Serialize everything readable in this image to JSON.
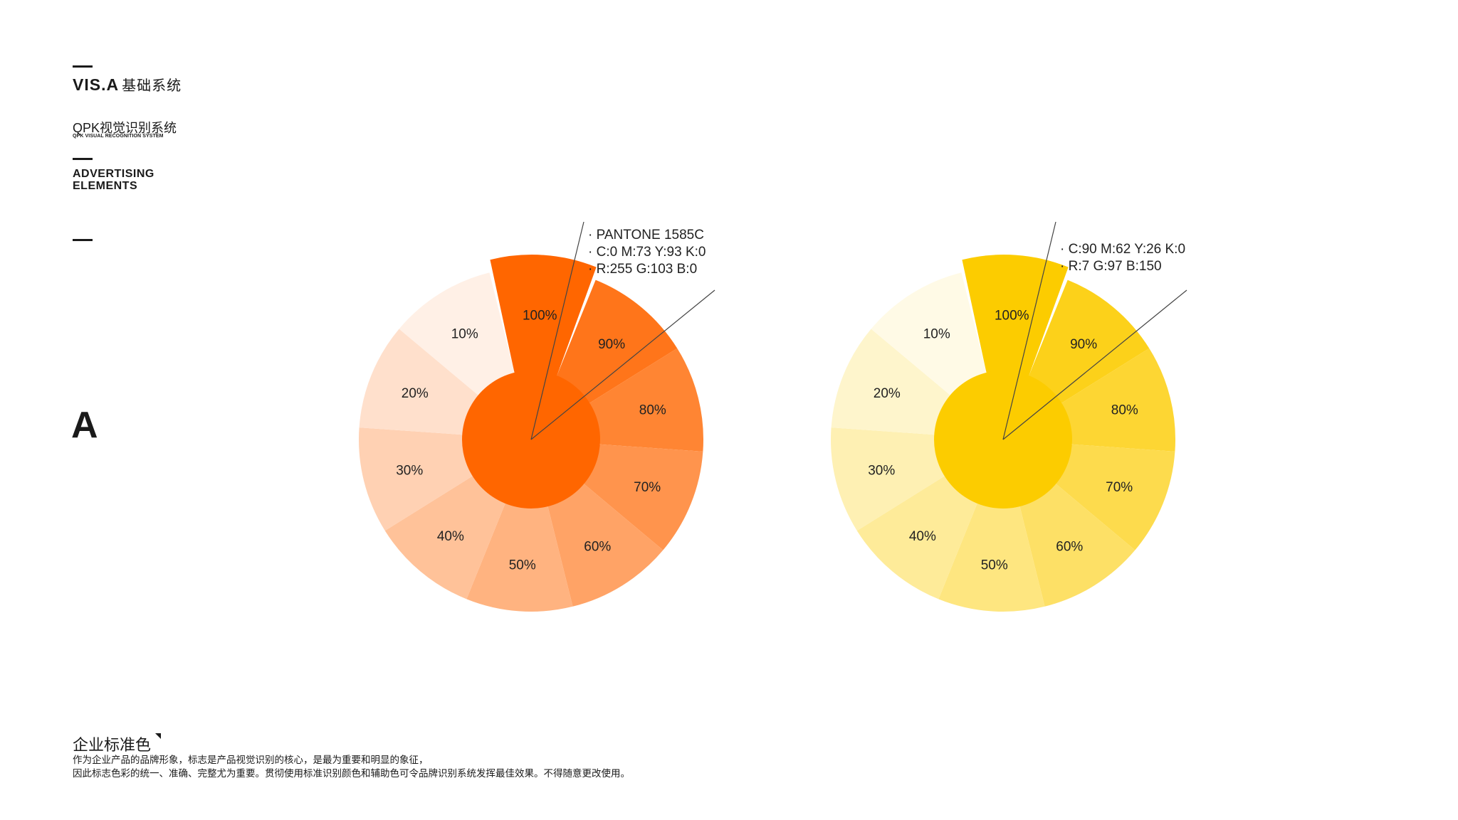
{
  "header": {
    "vis_code": "VIS.A",
    "vis_cn": "基础系统",
    "qpk_title": "QPK视觉识别系统",
    "qpk_subtitle": "QPK VISUAL RECOGNITION SYSTEM",
    "category_line1": "ADVERTISING",
    "category_line2": "ELEMENTS"
  },
  "section_letter": "A",
  "footer": {
    "title": "企业标准色",
    "desc_line1": "作为企业产品的品牌形象，标志是产品视觉识别的核心，是最为重要和明显的象征，",
    "desc_line2": "因此标志色彩的统一、准确、完整尤为重要。贯彻使用标准识别颜色和辅助色可令品牌识别系统发挥最佳效果。不得随意更改使用。"
  },
  "wheels": [
    {
      "name": "orange",
      "base_color": "#FF6600",
      "spec_lines": [
        "· PANTONE 1585C",
        "· C:0    M:73   Y:93   K:0",
        "· R:255     G:103     B:0"
      ],
      "tints": [
        "10%",
        "20%",
        "30%",
        "40%",
        "50%",
        "60%",
        "70%",
        "80%",
        "90%",
        "100%"
      ],
      "tint_levels": [
        0.1,
        0.2,
        0.3,
        0.4,
        0.5,
        0.6,
        0.7,
        0.8,
        0.9,
        1.0
      ]
    },
    {
      "name": "yellow",
      "base_color": "#FCCC00",
      "spec_lines": [
        "· C:90    M:62  Y:26    K:0",
        "· R:7       G:97     B:150"
      ],
      "tints": [
        "10%",
        "20%",
        "30%",
        "40%",
        "50%",
        "60%",
        "70%",
        "80%",
        "90%",
        "100%"
      ],
      "tint_levels": [
        0.1,
        0.2,
        0.3,
        0.4,
        0.5,
        0.6,
        0.7,
        0.8,
        0.9,
        1.0
      ]
    }
  ]
}
